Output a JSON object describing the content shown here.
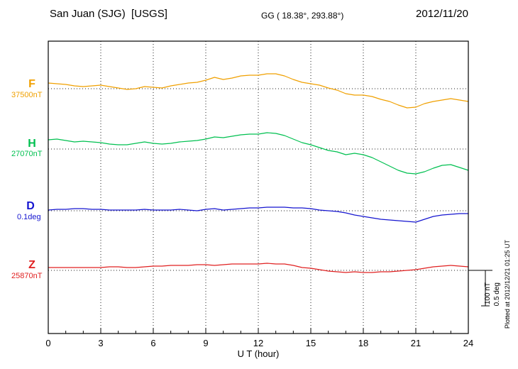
{
  "header": {
    "station_title": "San Juan (SJG)  [USGS]",
    "coords": "GG ( 18.38°, 293.88°)",
    "date": "2012/11/20",
    "plotted_note": "Plotted at 2012/12/21 01:25 UT"
  },
  "scale": {
    "nt_label": "100 nT",
    "deg_label": "0.5 deg"
  },
  "chart_data": {
    "type": "line",
    "title": "San Juan (SJG) [USGS] magnetogram 2012/11/20",
    "xlabel": "U T (hour)",
    "xlim": [
      0,
      24
    ],
    "x_ticks": [
      0,
      3,
      6,
      9,
      12,
      15,
      18,
      21,
      24
    ],
    "x_step_hours": 0.5,
    "grid": "dotted vertical lines every 3 h; dotted horizontal line at each series baseline",
    "legend_position": "left margin",
    "scale_bar": {
      "nT_per_div": 100,
      "deg_per_div": 0.5
    },
    "series": [
      {
        "name": "F",
        "unit": "nT",
        "baseline": 37500,
        "baseline_label": "37500nT",
        "color": "#f0a000",
        "values": [
          16,
          14,
          12,
          8,
          6,
          8,
          10,
          6,
          2,
          -2,
          0,
          6,
          4,
          2,
          8,
          12,
          16,
          18,
          24,
          32,
          26,
          30,
          36,
          38,
          38,
          42,
          42,
          36,
          26,
          18,
          14,
          10,
          2,
          -4,
          -14,
          -18,
          -18,
          -22,
          -30,
          -36,
          -46,
          -54,
          -52,
          -42,
          -36,
          -32,
          -28,
          -32,
          -36
        ]
      },
      {
        "name": "H",
        "unit": "nT",
        "baseline": 27070,
        "baseline_label": "27070nT",
        "color": "#00c050",
        "values": [
          26,
          28,
          24,
          20,
          22,
          20,
          18,
          14,
          12,
          12,
          16,
          20,
          16,
          14,
          16,
          20,
          22,
          24,
          28,
          34,
          32,
          36,
          40,
          42,
          42,
          46,
          44,
          38,
          28,
          18,
          12,
          4,
          -4,
          -8,
          -16,
          -12,
          -16,
          -24,
          -36,
          -48,
          -60,
          -68,
          -70,
          -64,
          -54,
          -46,
          -44,
          -52,
          -60
        ]
      },
      {
        "name": "D",
        "unit": "deg",
        "baseline": 0.1,
        "baseline_label": "0.1deg",
        "color": "#1515d0",
        "values": [
          0.01,
          0.02,
          0.02,
          0.03,
          0.03,
          0.02,
          0.02,
          0.01,
          0.01,
          0.01,
          0.01,
          0.02,
          0.01,
          0.01,
          0.01,
          0.02,
          0.01,
          0.0,
          0.02,
          0.03,
          0.01,
          0.02,
          0.03,
          0.04,
          0.04,
          0.05,
          0.05,
          0.05,
          0.04,
          0.04,
          0.03,
          0.01,
          0.0,
          -0.01,
          -0.03,
          -0.06,
          -0.08,
          -0.1,
          -0.12,
          -0.13,
          -0.14,
          -0.15,
          -0.16,
          -0.12,
          -0.08,
          -0.06,
          -0.05,
          -0.04,
          -0.04
        ]
      },
      {
        "name": "Z",
        "unit": "nT",
        "baseline": 25870,
        "baseline_label": "25870nT",
        "color": "#e02020",
        "values": [
          8,
          8,
          8,
          8,
          8,
          8,
          8,
          10,
          10,
          8,
          8,
          10,
          12,
          12,
          14,
          14,
          14,
          16,
          16,
          14,
          16,
          18,
          18,
          18,
          18,
          20,
          18,
          18,
          14,
          8,
          6,
          2,
          -2,
          -4,
          -6,
          -4,
          -6,
          -6,
          -4,
          -4,
          -2,
          0,
          2,
          6,
          10,
          12,
          14,
          12,
          10
        ]
      }
    ]
  }
}
